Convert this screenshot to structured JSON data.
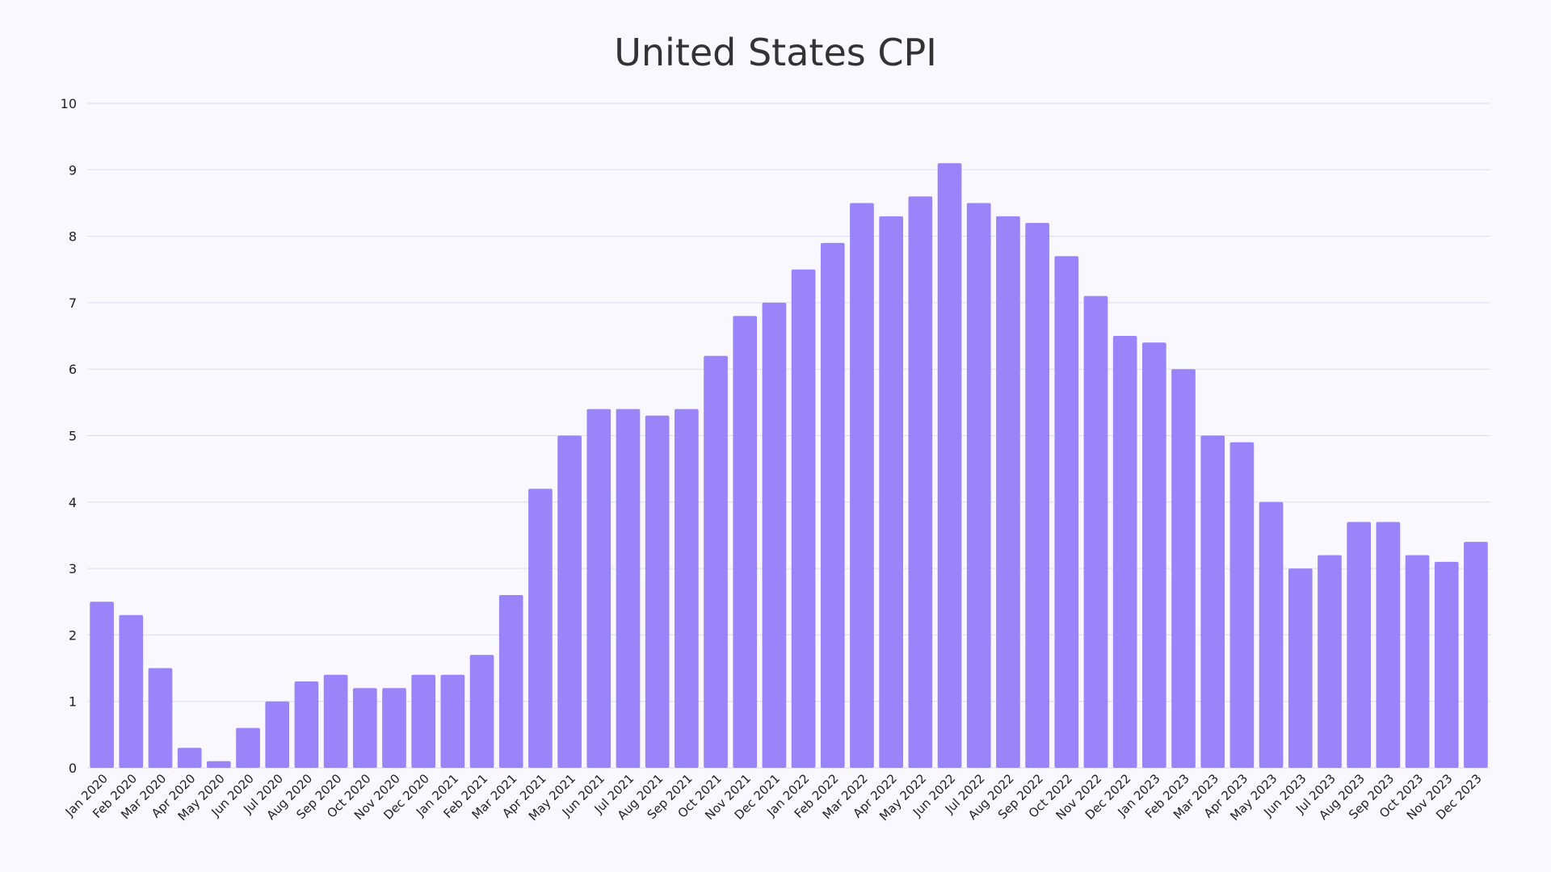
{
  "chart_data": {
    "type": "bar",
    "title": "United States CPI",
    "xlabel": "",
    "ylabel": "",
    "ylim": [
      0,
      10
    ],
    "yticks": [
      0,
      1,
      2,
      3,
      4,
      5,
      6,
      7,
      8,
      9,
      10
    ],
    "grid": true,
    "bar_color": "#9a84fa",
    "categories": [
      "Jan 2020",
      "Feb 2020",
      "Mar 2020",
      "Apr 2020",
      "May 2020",
      "Jun 2020",
      "Jul 2020",
      "Aug 2020",
      "Sep 2020",
      "Oct 2020",
      "Nov 2020",
      "Dec 2020",
      "Jan 2021",
      "Feb 2021",
      "Mar 2021",
      "Apr 2021",
      "May 2021",
      "Jun 2021",
      "Jul 2021",
      "Aug 2021",
      "Sep 2021",
      "Oct 2021",
      "Nov 2021",
      "Dec 2021",
      "Jan 2022",
      "Feb 2022",
      "Mar 2022",
      "Apr 2022",
      "May 2022",
      "Jun 2022",
      "Jul 2022",
      "Aug 2022",
      "Sep 2022",
      "Oct 2022",
      "Nov 2022",
      "Dec 2022",
      "Jan 2023",
      "Feb 2023",
      "Mar 2023",
      "Apr 2023",
      "May 2023",
      "Jun 2023",
      "Jul 2023",
      "Aug 2023",
      "Sep 2023",
      "Oct 2023",
      "Nov 2023",
      "Dec 2023"
    ],
    "values": [
      2.5,
      2.3,
      1.5,
      0.3,
      0.1,
      0.6,
      1.0,
      1.3,
      1.4,
      1.2,
      1.2,
      1.4,
      1.4,
      1.7,
      2.6,
      4.2,
      5.0,
      5.4,
      5.4,
      5.3,
      5.4,
      6.2,
      6.8,
      7.0,
      7.5,
      7.9,
      8.5,
      8.3,
      8.6,
      9.1,
      8.5,
      8.3,
      8.2,
      7.7,
      7.1,
      6.5,
      6.4,
      6.0,
      5.0,
      4.9,
      4.0,
      3.0,
      3.2,
      3.7,
      3.7,
      3.2,
      3.1,
      3.4
    ]
  }
}
